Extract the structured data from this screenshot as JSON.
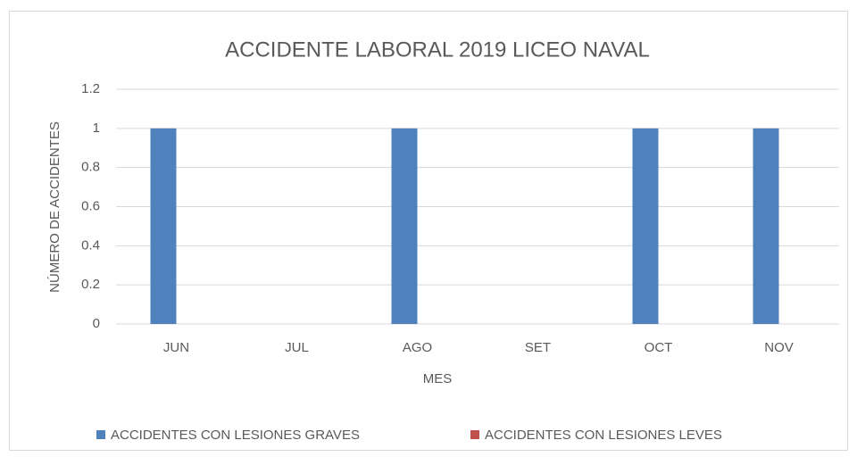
{
  "chart_data": {
    "type": "bar",
    "title": "ACCIDENTE LABORAL 2019 LICEO NAVAL",
    "x_label": "MES",
    "y_label": "NÚMERO DE ACCIDENTES",
    "categories": [
      "JUN",
      "JUL",
      "AGO",
      "SET",
      "OCT",
      "NOV"
    ],
    "series": [
      {
        "name": "ACCIDENTES CON LESIONES GRAVES",
        "color": "#4f81bd",
        "values": [
          1,
          0,
          1,
          0,
          1,
          1
        ]
      },
      {
        "name": "ACCIDENTES CON LESIONES LEVES",
        "color": "#c0504d",
        "values": [
          0,
          0,
          0,
          0,
          0,
          0
        ]
      }
    ],
    "ylim": [
      0,
      1.2
    ],
    "yticks": [
      0,
      0.2,
      0.4,
      0.6,
      0.8,
      1,
      1.2
    ],
    "grid": true,
    "legend": "bottom"
  }
}
